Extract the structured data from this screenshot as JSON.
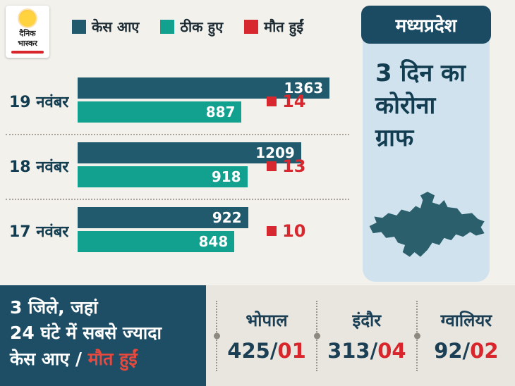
{
  "logo": {
    "line1": "दैनिक",
    "line2": "भास्कर"
  },
  "legend": [
    {
      "label": "केस आए",
      "color": "#215a6d"
    },
    {
      "label": "ठीक हुए",
      "color": "#12a08f"
    },
    {
      "label": "मौत हुईं",
      "color": "#d7282f"
    }
  ],
  "chart_data": {
    "type": "bar",
    "orientation": "horizontal",
    "categories": [
      "19 नवंबर",
      "18 नवंबर",
      "17 नवंबर"
    ],
    "series": [
      {
        "name": "केस आए",
        "color": "#215a6d",
        "values": [
          1363,
          1209,
          922
        ]
      },
      {
        "name": "ठीक हुए",
        "color": "#12a08f",
        "values": [
          887,
          918,
          848
        ]
      },
      {
        "name": "मौत हुईं",
        "color": "#d7282f",
        "values": [
          14,
          13,
          10
        ]
      }
    ],
    "xlim": [
      0,
      1450
    ],
    "legend_position": "top",
    "grid": false
  },
  "panel": {
    "title": "मध्यप्रदेश",
    "subtitle": "3 दिन का कोरोना ग्राफ"
  },
  "bottom": {
    "line1": "3 जिले, जहां",
    "line2": "24 घंटे में सबसे ज्यादा",
    "line3_white": "केस आए / ",
    "line3_red": "मौत हुईं",
    "cities": [
      {
        "name": "भोपाल",
        "cases": "425",
        "sep": "/",
        "deaths": "01"
      },
      {
        "name": "इंदौर",
        "cases": "313",
        "sep": "/",
        "deaths": "04"
      },
      {
        "name": "ग्वालियर",
        "cases": "92",
        "sep": "/",
        "deaths": "02"
      }
    ]
  }
}
